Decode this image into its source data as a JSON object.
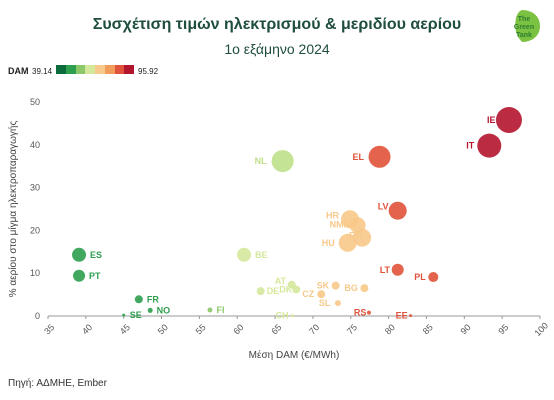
{
  "title": "Συσχέτιση τιμών ηλεκτρισμού & μεριδίου αερίου",
  "subtitle": "1ο εξάμηνο 2024",
  "source": "Πηγή: ΑΔΜΗΕ, Ember",
  "logo": {
    "text": [
      "The",
      "Green",
      "Tank"
    ],
    "icon": "leaf-icon"
  },
  "legend": {
    "label": "DAM",
    "min": "39.14",
    "max": "95.92",
    "colors": [
      "#0b6b3a",
      "#2e9e4f",
      "#8cc86a",
      "#d4e89b",
      "#f7c98a",
      "#f29c5c",
      "#e0523a",
      "#b4152e"
    ]
  },
  "chart_data": {
    "type": "scatter",
    "title": "Συσχέτιση τιμών ηλεκτρισμού & μεριδίου αερίου",
    "subtitle": "1ο εξάμηνο 2024",
    "xlabel": "Μέση DAM (€/MWh)",
    "ylabel": "% αερίου στο μίγμα ηλεκτροπαραγωγής",
    "xlim": [
      35,
      100
    ],
    "ylim": [
      0,
      50
    ],
    "xticks": [
      35,
      40,
      45,
      50,
      55,
      60,
      65,
      70,
      75,
      80,
      85,
      90,
      95,
      100
    ],
    "yticks": [
      0,
      10,
      20,
      30,
      40,
      50
    ],
    "grid": false,
    "color_scale": {
      "field": "DAM",
      "min": 39.14,
      "max": 95.92
    },
    "points": [
      {
        "label": "IE",
        "x": 95.9,
        "y": 45.8,
        "size": 13,
        "color": "#b4152e"
      },
      {
        "label": "IT",
        "x": 93.3,
        "y": 39.8,
        "size": 12,
        "color": "#b4152e"
      },
      {
        "label": "EL",
        "x": 78.8,
        "y": 37.2,
        "size": 11,
        "color": "#e0523a"
      },
      {
        "label": "NL",
        "x": 66.0,
        "y": 36.2,
        "size": 11,
        "color": "#bfe08a"
      },
      {
        "label": "LV",
        "x": 81.2,
        "y": 24.6,
        "size": 9,
        "color": "#e0523a"
      },
      {
        "label": "HR",
        "x": 74.9,
        "y": 22.6,
        "size": 9,
        "color": "#f7c98a"
      },
      {
        "label": "NMK",
        "x": 75.9,
        "y": 21.2,
        "size": 8,
        "color": "#f7c98a"
      },
      {
        "label": "RO",
        "x": 76.5,
        "y": 18.3,
        "size": 9,
        "color": "#f7c98a"
      },
      {
        "label": "HU",
        "x": 74.6,
        "y": 17.1,
        "size": 9,
        "color": "#f7c98a"
      },
      {
        "label": "BE",
        "x": 60.9,
        "y": 14.3,
        "size": 7,
        "color": "#d4e89b"
      },
      {
        "label": "ES",
        "x": 39.1,
        "y": 14.3,
        "size": 7,
        "color": "#2e9e4f"
      },
      {
        "label": "LT",
        "x": 81.2,
        "y": 10.8,
        "size": 6,
        "color": "#e0523a"
      },
      {
        "label": "PT",
        "x": 39.1,
        "y": 9.4,
        "size": 6,
        "color": "#2e9e4f"
      },
      {
        "label": "PL",
        "x": 85.9,
        "y": 9.1,
        "size": 5,
        "color": "#e0523a"
      },
      {
        "label": "AT",
        "x": 67.2,
        "y": 7.3,
        "size": 4,
        "color": "#d4e89b"
      },
      {
        "label": "SK",
        "x": 73.0,
        "y": 7.1,
        "size": 4,
        "color": "#f7c98a"
      },
      {
        "label": "BG",
        "x": 76.8,
        "y": 6.5,
        "size": 4,
        "color": "#f7c98a"
      },
      {
        "label": "DK",
        "x": 67.8,
        "y": 6.2,
        "size": 4,
        "color": "#d4e89b"
      },
      {
        "label": "DE",
        "x": 63.1,
        "y": 5.8,
        "size": 4,
        "color": "#d4e89b"
      },
      {
        "label": "CZ",
        "x": 71.1,
        "y": 5.1,
        "size": 4,
        "color": "#f7c98a"
      },
      {
        "label": "FR",
        "x": 47.0,
        "y": 3.9,
        "size": 4,
        "color": "#2e9e4f"
      },
      {
        "label": "SL",
        "x": 73.3,
        "y": 3.0,
        "size": 3,
        "color": "#f7c98a"
      },
      {
        "label": "FI",
        "x": 56.4,
        "y": 1.4,
        "size": 2.5,
        "color": "#8cc86a"
      },
      {
        "label": "NO",
        "x": 48.5,
        "y": 1.3,
        "size": 2.5,
        "color": "#2e9e4f"
      },
      {
        "label": "RS",
        "x": 77.4,
        "y": 0.8,
        "size": 2,
        "color": "#e0523a"
      },
      {
        "label": "SE",
        "x": 45.0,
        "y": 0.2,
        "size": 1.5,
        "color": "#2e9e4f"
      },
      {
        "label": "CH",
        "x": 67.3,
        "y": 0.1,
        "size": 1.5,
        "color": "#d4e89b"
      },
      {
        "label": "EE",
        "x": 82.9,
        "y": 0.1,
        "size": 1.5,
        "color": "#e0523a"
      }
    ]
  }
}
